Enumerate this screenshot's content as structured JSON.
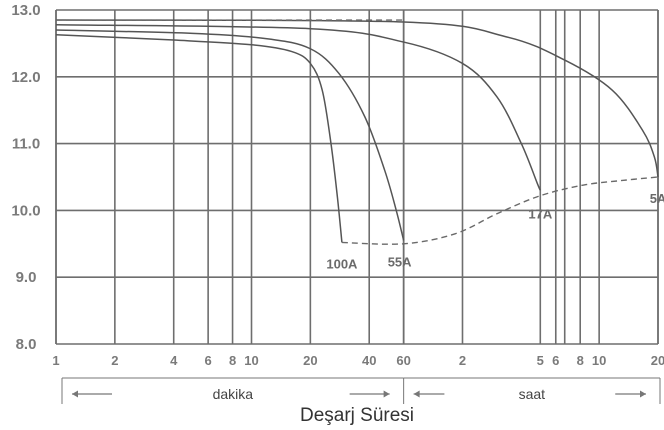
{
  "chart_data": {
    "type": "line",
    "xlabel": "Deşarj Süresi",
    "x_scale": "log",
    "x_domain_minutes": [
      1,
      1200
    ],
    "ylim": [
      8.0,
      13.0
    ],
    "y_ticks": [
      "8.0",
      "9.0",
      "10.0",
      "11.0",
      "12.0",
      "13.0"
    ],
    "y_tick_values": [
      8,
      9,
      10,
      11,
      12,
      13
    ],
    "x_ticks": [
      {
        "label": "1",
        "minutes": 1
      },
      {
        "label": "2",
        "minutes": 2
      },
      {
        "label": "4",
        "minutes": 4
      },
      {
        "label": "6",
        "minutes": 6
      },
      {
        "label": "8",
        "minutes": 8
      },
      {
        "label": "10",
        "minutes": 10
      },
      {
        "label": "20",
        "minutes": 20
      },
      {
        "label": "40",
        "minutes": 40
      },
      {
        "label": "60",
        "minutes": 60
      },
      {
        "label": "2",
        "minutes": 120
      },
      {
        "label": "5",
        "minutes": 300
      },
      {
        "label": "6",
        "minutes": 360
      },
      {
        "label": "8",
        "minutes": 480
      },
      {
        "label": "10",
        "minutes": 600
      },
      {
        "label": "20",
        "minutes": 1200
      }
    ],
    "extra_gridlines_minutes": [
      400
    ],
    "unit_bands": [
      {
        "label": "dakika",
        "from_minutes": 1,
        "to_minutes": 60
      },
      {
        "label": "saat",
        "from_minutes": 60,
        "to_minutes": 1200
      }
    ],
    "series": [
      {
        "name": "100A",
        "points": [
          [
            1,
            12.63
          ],
          [
            4,
            12.55
          ],
          [
            10,
            12.48
          ],
          [
            16,
            12.38
          ],
          [
            20,
            12.2
          ],
          [
            23,
            11.8
          ],
          [
            25.5,
            11.0
          ],
          [
            27.5,
            10.2
          ],
          [
            29,
            9.52
          ]
        ]
      },
      {
        "name": "55A",
        "points": [
          [
            1,
            12.7
          ],
          [
            5,
            12.65
          ],
          [
            12,
            12.57
          ],
          [
            20,
            12.42
          ],
          [
            28,
            12.05
          ],
          [
            38,
            11.4
          ],
          [
            48,
            10.6
          ],
          [
            55,
            10.0
          ],
          [
            60,
            9.55
          ]
        ]
      },
      {
        "name": "17A",
        "points": [
          [
            1,
            12.78
          ],
          [
            20,
            12.72
          ],
          [
            60,
            12.52
          ],
          [
            120,
            12.2
          ],
          [
            180,
            11.7
          ],
          [
            240,
            11.0
          ],
          [
            290,
            10.4
          ],
          [
            300,
            10.3
          ]
        ]
      },
      {
        "name": "5A",
        "points": [
          [
            1,
            12.85
          ],
          [
            60,
            12.82
          ],
          [
            200,
            12.6
          ],
          [
            400,
            12.25
          ],
          [
            700,
            11.8
          ],
          [
            1000,
            11.2
          ],
          [
            1150,
            10.8
          ],
          [
            1200,
            10.5
          ]
        ]
      }
    ],
    "reference_lines": [
      {
        "style": "dashed",
        "points": [
          [
            1,
            12.85
          ],
          [
            60,
            12.85
          ]
        ]
      },
      {
        "style": "dashed",
        "points": [
          [
            29,
            9.52
          ],
          [
            60,
            9.5
          ],
          [
            110,
            9.65
          ],
          [
            180,
            9.95
          ],
          [
            300,
            10.22
          ],
          [
            500,
            10.38
          ],
          [
            800,
            10.45
          ],
          [
            1200,
            10.5
          ]
        ]
      }
    ]
  }
}
